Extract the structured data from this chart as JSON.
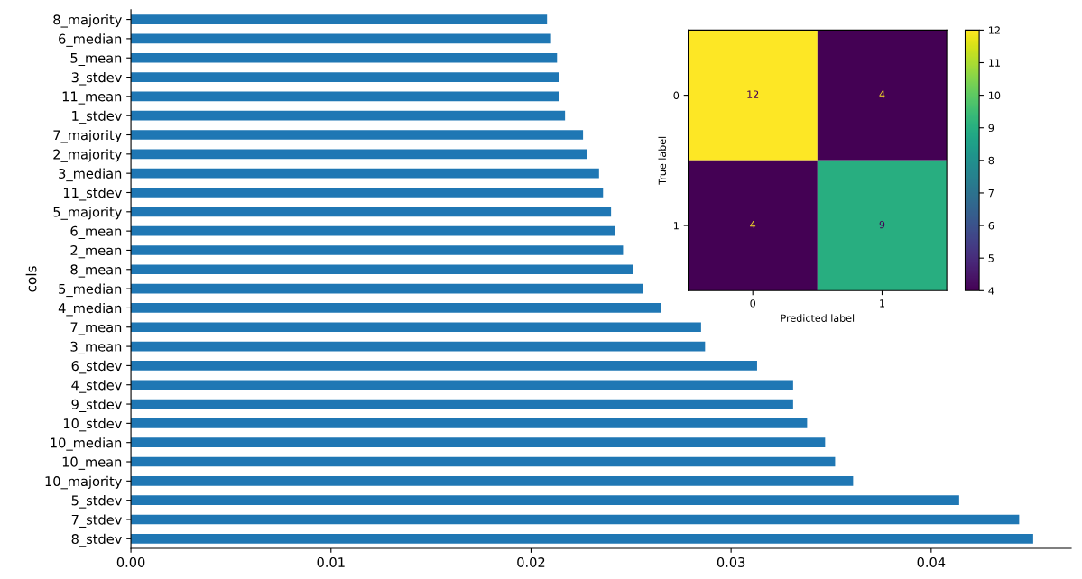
{
  "chart_data": [
    {
      "type": "bar",
      "orientation": "horizontal",
      "ylabel": "cols",
      "color": "#1f77b4",
      "categories": [
        "8_majority",
        "6_median",
        "5_mean",
        "3_stdev",
        "11_mean",
        "1_stdev",
        "7_majority",
        "2_majority",
        "3_median",
        "11_stdev",
        "5_majority",
        "6_mean",
        "2_mean",
        "8_mean",
        "5_median",
        "4_median",
        "7_mean",
        "3_mean",
        "6_stdev",
        "4_stdev",
        "9_stdev",
        "10_stdev",
        "10_median",
        "10_mean",
        "10_majority",
        "5_stdev",
        "7_stdev",
        "8_stdev"
      ],
      "values": [
        0.0208,
        0.021,
        0.0213,
        0.0214,
        0.0214,
        0.0217,
        0.0226,
        0.0228,
        0.0234,
        0.0236,
        0.024,
        0.0242,
        0.0246,
        0.0251,
        0.0256,
        0.0265,
        0.0285,
        0.0287,
        0.0313,
        0.0331,
        0.0331,
        0.0338,
        0.0347,
        0.0352,
        0.0361,
        0.0414,
        0.0444,
        0.0451
      ],
      "xlim": [
        0,
        0.047
      ],
      "xticks": [
        {
          "value": 0,
          "label": "0.00"
        },
        {
          "value": 0.01,
          "label": "0.01"
        },
        {
          "value": 0.02,
          "label": "0.02"
        },
        {
          "value": 0.03,
          "label": "0.03"
        },
        {
          "value": 0.04,
          "label": "0.04"
        }
      ],
      "grid": false
    },
    {
      "type": "heatmap",
      "xlabel": "Predicted label",
      "ylabel": "True label",
      "categories": [
        "0",
        "1"
      ],
      "y_categories": [
        "0",
        "1"
      ],
      "cells": [
        [
          12,
          4
        ],
        [
          4,
          9
        ]
      ],
      "data_labels": true,
      "clim": [
        4,
        12
      ],
      "cticks": [
        4,
        5,
        6,
        7,
        8,
        9,
        10,
        11,
        12
      ]
    }
  ]
}
